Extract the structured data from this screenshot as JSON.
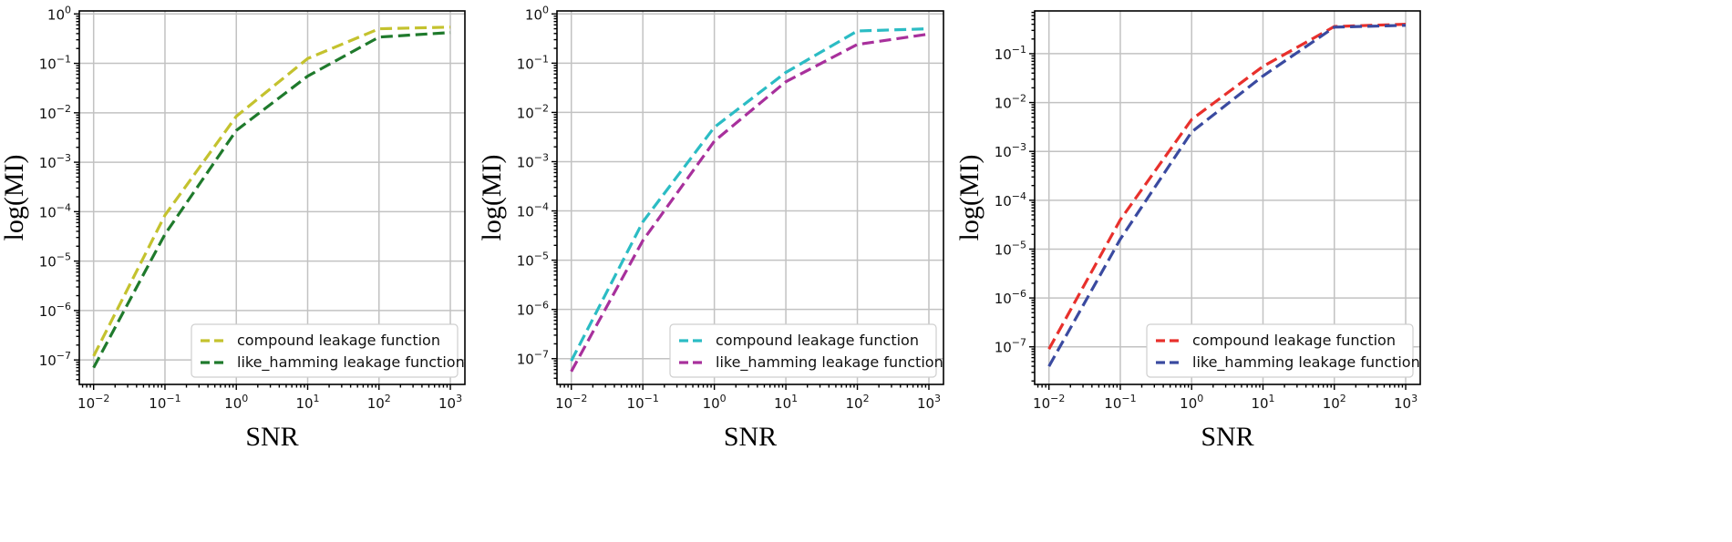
{
  "chart_data": [
    {
      "type": "line",
      "xscale": "log",
      "yscale": "log",
      "xlabel": "SNR",
      "ylabel": "log(MI)",
      "xlim": [
        0.0063,
        1600
      ],
      "ylim": [
        3.2e-08,
        1.15
      ],
      "grid": true,
      "legend_loc": "lower right",
      "x_ticks": [
        {
          "base": "10",
          "exp": "−2"
        },
        {
          "base": "10",
          "exp": "−1"
        },
        {
          "base": "10",
          "exp": "0"
        },
        {
          "base": "10",
          "exp": "1"
        },
        {
          "base": "10",
          "exp": "2"
        },
        {
          "base": "10",
          "exp": "3"
        }
      ],
      "y_ticks": [
        {
          "base": "10",
          "exp": "−7"
        },
        {
          "base": "10",
          "exp": "−6"
        },
        {
          "base": "10",
          "exp": "−5"
        },
        {
          "base": "10",
          "exp": "−4"
        },
        {
          "base": "10",
          "exp": "−3"
        },
        {
          "base": "10",
          "exp": "−2"
        },
        {
          "base": "10",
          "exp": "−1"
        },
        {
          "base": "10",
          "exp": "0"
        }
      ],
      "x": [
        0.01,
        0.1,
        1,
        10,
        100,
        1000
      ],
      "series": [
        {
          "name": "compound leakage function",
          "color": "#c4c22e",
          "values": [
            1.2e-07,
            8.5e-05,
            0.0085,
            0.125,
            0.5,
            0.54
          ]
        },
        {
          "name": "like_hamming leakage function",
          "color": "#1f7a2c",
          "values": [
            7e-08,
            3.5e-05,
            0.0044,
            0.055,
            0.34,
            0.42
          ]
        }
      ]
    },
    {
      "type": "line",
      "xscale": "log",
      "yscale": "log",
      "xlabel": "SNR",
      "ylabel": "log(MI)",
      "xlim": [
        0.0063,
        1600
      ],
      "ylim": [
        3e-08,
        1.15
      ],
      "grid": true,
      "legend_loc": "lower right",
      "x_ticks": [
        {
          "base": "10",
          "exp": "−2"
        },
        {
          "base": "10",
          "exp": "−1"
        },
        {
          "base": "10",
          "exp": "0"
        },
        {
          "base": "10",
          "exp": "1"
        },
        {
          "base": "10",
          "exp": "2"
        },
        {
          "base": "10",
          "exp": "3"
        }
      ],
      "y_ticks": [
        {
          "base": "10",
          "exp": "−7"
        },
        {
          "base": "10",
          "exp": "−6"
        },
        {
          "base": "10",
          "exp": "−5"
        },
        {
          "base": "10",
          "exp": "−4"
        },
        {
          "base": "10",
          "exp": "−3"
        },
        {
          "base": "10",
          "exp": "−2"
        },
        {
          "base": "10",
          "exp": "−1"
        },
        {
          "base": "10",
          "exp": "0"
        }
      ],
      "x": [
        0.01,
        0.1,
        1,
        10,
        100,
        1000
      ],
      "series": [
        {
          "name": "compound leakage function",
          "color": "#2bbcc4",
          "values": [
            9e-08,
            6e-05,
            0.005,
            0.065,
            0.45,
            0.5
          ]
        },
        {
          "name": "like_hamming leakage function",
          "color": "#a8309c",
          "values": [
            5.5e-08,
            2.5e-05,
            0.0026,
            0.042,
            0.24,
            0.39
          ]
        }
      ]
    },
    {
      "type": "line",
      "xscale": "log",
      "yscale": "log",
      "xlabel": "SNR",
      "ylabel": "log(MI)",
      "xlim": [
        0.0063,
        1600
      ],
      "ylim": [
        1.7e-08,
        0.75
      ],
      "grid": true,
      "legend_loc": "lower right",
      "x_ticks": [
        {
          "base": "10",
          "exp": "−2"
        },
        {
          "base": "10",
          "exp": "−1"
        },
        {
          "base": "10",
          "exp": "0"
        },
        {
          "base": "10",
          "exp": "1"
        },
        {
          "base": "10",
          "exp": "2"
        },
        {
          "base": "10",
          "exp": "3"
        }
      ],
      "y_ticks": [
        {
          "base": "10",
          "exp": "−7"
        },
        {
          "base": "10",
          "exp": "−6"
        },
        {
          "base": "10",
          "exp": "−5"
        },
        {
          "base": "10",
          "exp": "−4"
        },
        {
          "base": "10",
          "exp": "−3"
        },
        {
          "base": "10",
          "exp": "−2"
        },
        {
          "base": "10",
          "exp": "−1"
        }
      ],
      "x": [
        0.01,
        0.1,
        1,
        10,
        100,
        1000
      ],
      "series": [
        {
          "name": "compound leakage function",
          "color": "#e8302c",
          "values": [
            9e-08,
            4e-05,
            0.0045,
            0.055,
            0.36,
            0.4
          ]
        },
        {
          "name": "like_hamming leakage function",
          "color": "#3a4aa0",
          "values": [
            4e-08,
            1.6e-05,
            0.0025,
            0.035,
            0.35,
            0.38
          ]
        }
      ]
    }
  ]
}
